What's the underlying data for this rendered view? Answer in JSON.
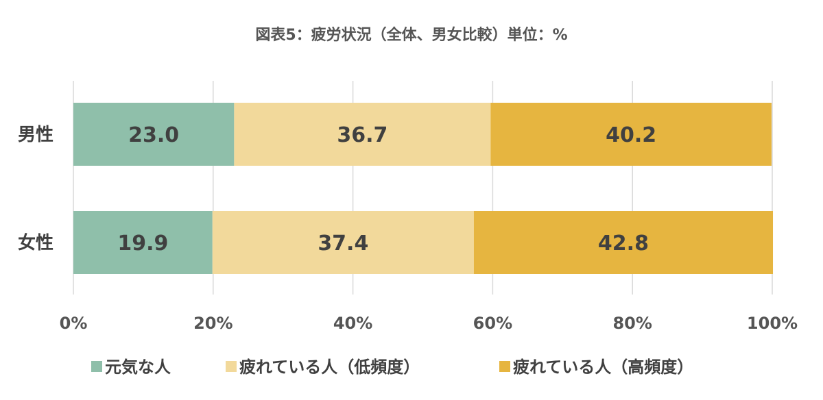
{
  "chart_data": {
    "type": "bar",
    "orientation": "horizontal",
    "stacked": true,
    "title": "図表5：疲労状況（全体、男女比較）単位：%",
    "categories": [
      "男性",
      "女性"
    ],
    "series": [
      {
        "name": "元気な人",
        "values": [
          23.0,
          19.9
        ],
        "labels": [
          "23.0",
          "19.9"
        ],
        "color": "#8fbfaa"
      },
      {
        "name": "疲れている人（低頻度）",
        "values": [
          36.7,
          37.4
        ],
        "labels": [
          "36.7",
          "37.4"
        ],
        "color": "#f2d99b"
      },
      {
        "name": "疲れている人（高頻度）",
        "values": [
          40.2,
          42.8
        ],
        "labels": [
          "40.2",
          "42.8"
        ],
        "color": "#e6b540"
      }
    ],
    "xlim": [
      0,
      100
    ],
    "xticks": [
      "0%",
      "20%",
      "40%",
      "60%",
      "80%",
      "100%"
    ],
    "grid": true,
    "legend_position": "bottom"
  }
}
